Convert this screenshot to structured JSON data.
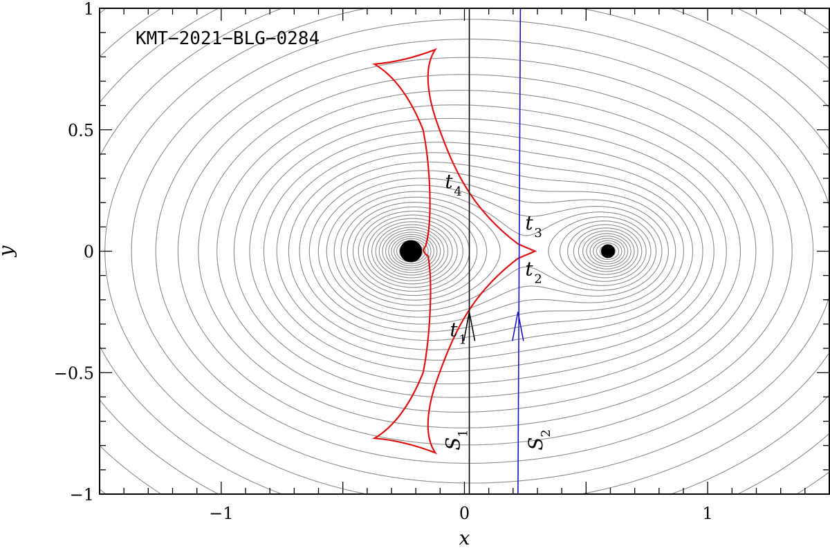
{
  "chart_data": {
    "type": "line",
    "title": "KMT−2021−BLG−0284",
    "xlabel": "x",
    "ylabel": "y",
    "xlim": [
      -1.5,
      1.5
    ],
    "ylim": [
      -1,
      1
    ],
    "xticks": [
      -1,
      0,
      1
    ],
    "xtick_labels": [
      "−1",
      "0",
      "1"
    ],
    "yticks": [
      -1,
      -0.5,
      0,
      0.5,
      1
    ],
    "ytick_labels": [
      "−1",
      "−0.5",
      "0",
      "0.5",
      "1"
    ],
    "grid": false,
    "lens_masses": [
      {
        "x": -0.22,
        "y": 0.0,
        "size": "large"
      },
      {
        "x": 0.59,
        "y": 0.0,
        "size": "small"
      }
    ],
    "caustic": {
      "color": "#dd1111",
      "cusps": [
        {
          "x": -0.37,
          "y": 0.77
        },
        {
          "x": -0.12,
          "y": 0.83
        },
        {
          "x": 0.29,
          "y": 0.0
        },
        {
          "x": -0.12,
          "y": -0.83
        },
        {
          "x": -0.37,
          "y": -0.77
        },
        {
          "x": -0.12,
          "y": 0.0
        }
      ]
    },
    "series": [
      {
        "name": "S1",
        "color": "#000000",
        "x": [
          0.02,
          0.02
        ],
        "y": [
          -1,
          1
        ],
        "arrow": {
          "x": 0.02,
          "y": -0.25
        }
      },
      {
        "name": "S2",
        "color": "#1111cc",
        "x": [
          0.22,
          0.23
        ],
        "y": [
          -1,
          1
        ],
        "arrow": {
          "x": 0.22,
          "y": -0.25
        }
      }
    ],
    "annotations": [
      {
        "label": "t",
        "sub": "1",
        "x": -0.06,
        "y": -0.35
      },
      {
        "label": "t",
        "sub": "2",
        "x": 0.25,
        "y": -0.1
      },
      {
        "label": "t",
        "sub": "3",
        "x": 0.25,
        "y": 0.09
      },
      {
        "label": "t",
        "sub": "4",
        "x": -0.08,
        "y": 0.26
      },
      {
        "label": "S",
        "sub": "1",
        "x": -0.02,
        "y": -0.82,
        "rotate": -90
      },
      {
        "label": "S",
        "sub": "2",
        "x": 0.32,
        "y": -0.82,
        "rotate": -90
      }
    ]
  }
}
